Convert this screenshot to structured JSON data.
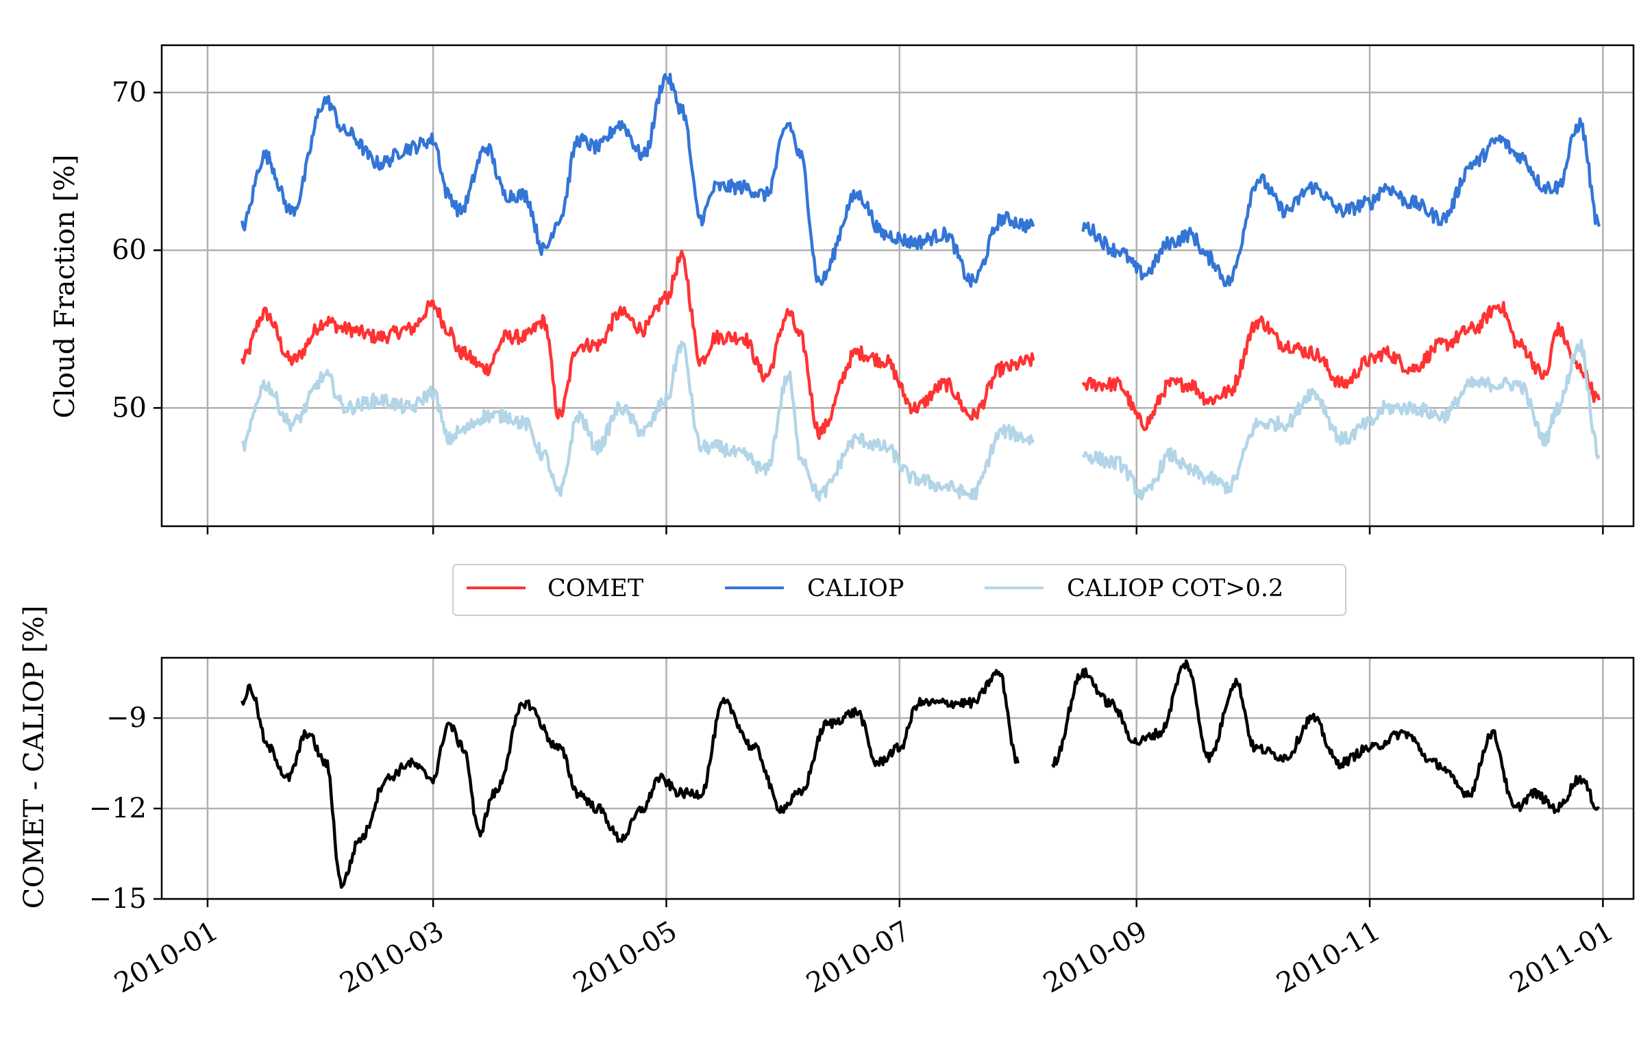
{
  "chart_data": [
    {
      "type": "line",
      "xlabel": "",
      "ylabel": "Cloud Fraction [%]",
      "x_ticks": [
        "2010-01",
        "2010-03",
        "2010-05",
        "2010-07",
        "2010-09",
        "2010-11",
        "2011-01"
      ],
      "xlim": [
        "2009-12-20",
        "2011-01-09"
      ],
      "y_ticks": [
        50,
        60,
        70
      ],
      "ylim": [
        42.5,
        73
      ],
      "grid": true,
      "legend": {
        "placement": "between panels",
        "entries": [
          "COMET",
          "CALIOP",
          "CALIOP COT>0.2"
        ]
      },
      "x": [
        "2010-01-10",
        "2010-01-16",
        "2010-01-23",
        "2010-02-01",
        "2010-02-06",
        "2010-02-15",
        "2010-02-23",
        "2010-03-01",
        "2010-03-05",
        "2010-03-08",
        "2010-03-15",
        "2010-03-20",
        "2010-03-25",
        "2010-03-30",
        "2010-04-03",
        "2010-04-08",
        "2010-04-13",
        "2010-04-19",
        "2010-04-25",
        "2010-05-01",
        "2010-05-05",
        "2010-05-10",
        "2010-05-14",
        "2010-05-21",
        "2010-05-27",
        "2010-06-02",
        "2010-06-05",
        "2010-06-10",
        "2010-06-20",
        "2010-06-27",
        "2010-07-05",
        "2010-07-13",
        "2010-07-20",
        "2010-07-28",
        "2010-08-05",
        "2010-08-10",
        "2010-08-18",
        "2010-08-27",
        "2010-09-03",
        "2010-09-10",
        "2010-09-15",
        "2010-09-20",
        "2010-09-25",
        "2010-10-03",
        "2010-10-10",
        "2010-10-17",
        "2010-10-25",
        "2010-11-01",
        "2010-11-05",
        "2010-11-12",
        "2010-11-20",
        "2010-11-28",
        "2010-12-05",
        "2010-12-10",
        "2010-12-17",
        "2010-12-20",
        "2010-12-26",
        "2010-12-31"
      ],
      "series": [
        {
          "name": "COMET",
          "color": "#ff3333",
          "values": [
            53,
            56,
            53,
            55.5,
            55,
            54.5,
            55,
            56.5,
            55,
            53.5,
            52.5,
            54.5,
            54.5,
            55.5,
            49.5,
            54,
            54,
            56,
            55,
            57,
            59.5,
            53,
            54.5,
            54.5,
            52,
            56,
            54.5,
            48.5,
            53.5,
            53,
            50,
            51.5,
            49.5,
            52.5,
            53,
            null,
            51.5,
            51.5,
            49,
            51.5,
            51.5,
            50.5,
            51,
            55.5,
            54,
            53.5,
            51.5,
            53,
            53.5,
            52.5,
            54,
            55,
            56.5,
            54,
            52,
            55,
            52.5,
            50.5
          ]
        },
        {
          "name": "CALIOP",
          "color": "#3375d6",
          "values": [
            61.5,
            66,
            62.5,
            69.5,
            67.5,
            65.5,
            66.5,
            67,
            63.5,
            62.5,
            66.5,
            63.5,
            63.5,
            60,
            62,
            67,
            66.5,
            68,
            66,
            71,
            69,
            62,
            64,
            64,
            63.5,
            68,
            66,
            58,
            63.5,
            61,
            60.5,
            61,
            58,
            62,
            61.5,
            null,
            61.5,
            60,
            58.5,
            60.5,
            61,
            59.5,
            58,
            64.5,
            62.5,
            64,
            62.5,
            63,
            64,
            63,
            62,
            65.5,
            67,
            66,
            64,
            64,
            68,
            61.5
          ]
        },
        {
          "name": "CALIOP COT>0.2",
          "color": "#b3d5e8",
          "values": [
            47.5,
            51.5,
            49,
            52,
            50,
            50.5,
            50,
            51,
            48,
            48.5,
            49.5,
            49.5,
            49,
            47,
            44.5,
            49.5,
            47.5,
            50,
            48.5,
            50.5,
            54,
            47.5,
            47.5,
            47,
            46,
            52,
            47,
            44.5,
            48,
            47.5,
            45.5,
            45,
            44.5,
            48.5,
            48,
            null,
            47,
            46.5,
            44.5,
            47,
            46,
            45.5,
            45,
            49,
            49,
            51,
            48,
            49,
            50,
            50,
            49.5,
            51.5,
            51.5,
            51.5,
            48,
            50,
            54,
            47
          ]
        }
      ]
    },
    {
      "type": "line",
      "xlabel": "",
      "ylabel": "COMET - CALIOP [%]",
      "x_ticks": [
        "2010-01",
        "2010-03",
        "2010-05",
        "2010-07",
        "2010-09",
        "2010-11",
        "2011-01"
      ],
      "xlim": [
        "2009-12-20",
        "2011-01-09"
      ],
      "y_ticks": [
        -9,
        -12,
        -15
      ],
      "ylim": [
        -15,
        -7
      ],
      "grid": true,
      "x": [
        "2010-01-10",
        "2010-01-12",
        "2010-01-17",
        "2010-01-22",
        "2010-01-27",
        "2010-02-01",
        "2010-02-05",
        "2010-02-10",
        "2010-02-17",
        "2010-02-23",
        "2010-03-01",
        "2010-03-05",
        "2010-03-09",
        "2010-03-13",
        "2010-03-17",
        "2010-03-25",
        "2010-04-03",
        "2010-04-08",
        "2010-04-13",
        "2010-04-19",
        "2010-04-25",
        "2010-04-29",
        "2010-05-05",
        "2010-05-10",
        "2010-05-16",
        "2010-05-24",
        "2010-05-31",
        "2010-06-05",
        "2010-06-12",
        "2010-06-20",
        "2010-06-25",
        "2010-07-01",
        "2010-07-06",
        "2010-07-13",
        "2010-07-20",
        "2010-07-27",
        "2010-08-01",
        "2010-08-05",
        "2010-08-10",
        "2010-08-18",
        "2010-08-25",
        "2010-09-01",
        "2010-09-07",
        "2010-09-14",
        "2010-09-20",
        "2010-09-27",
        "2010-10-02",
        "2010-10-10",
        "2010-10-17",
        "2010-10-24",
        "2010-11-01",
        "2010-11-10",
        "2010-11-18",
        "2010-11-27",
        "2010-12-03",
        "2010-12-09",
        "2010-12-14",
        "2010-12-20",
        "2010-12-26",
        "2010-12-31"
      ],
      "series": [
        {
          "name": "",
          "color": "#000000",
          "values": [
            -8.5,
            -8,
            -10,
            -11,
            -9.5,
            -10.5,
            -14.5,
            -13,
            -11,
            -10.5,
            -11,
            -9.2,
            -10,
            -12.8,
            -11.5,
            -8.5,
            -10,
            -11.5,
            -12,
            -13,
            -12,
            -11,
            -11.5,
            -11.5,
            -8.5,
            -10,
            -12,
            -11.5,
            -9.2,
            -8.8,
            -10.5,
            -10,
            -8.5,
            -8.5,
            -8.5,
            -7.5,
            -10.5,
            null,
            -10.5,
            -7.5,
            -8.5,
            -9.8,
            -9.5,
            -7.2,
            -10.3,
            -7.8,
            -10,
            -10.3,
            -9,
            -10.5,
            -10,
            -9.5,
            -10.5,
            -11.5,
            -9.5,
            -12,
            -11.5,
            -12,
            -11,
            -12
          ]
        }
      ]
    }
  ]
}
